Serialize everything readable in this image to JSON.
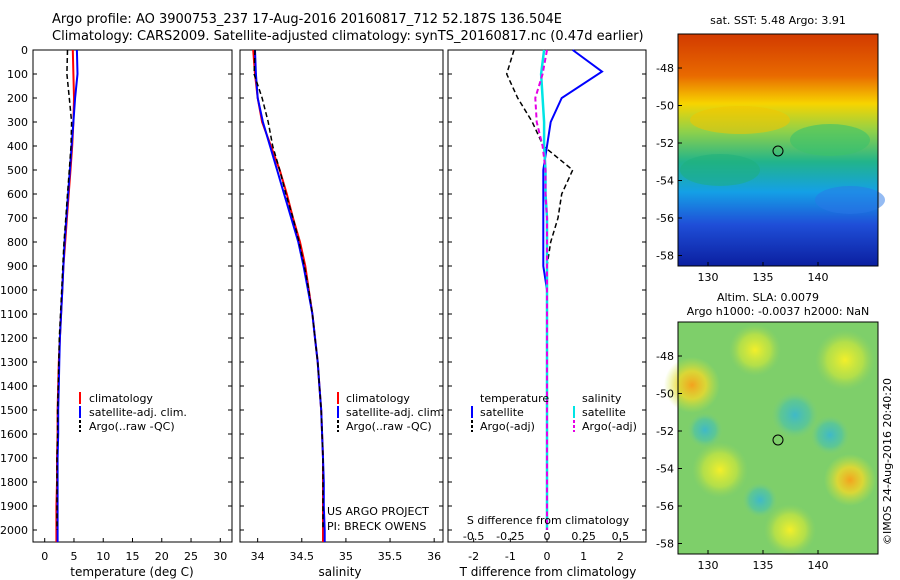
{
  "header": {
    "line1": "Argo profile: AO 3900753_237 17-Aug-2016 20160817_712 52.187S 136.504E",
    "line2": "Climatology: CARS2009. Satellite-adjusted climatology: synTS_20160817.nc (0.47d earlier)"
  },
  "colors": {
    "climatology": "#ff0000",
    "satellite": "#0000ff",
    "argo": "#000000",
    "salinity_sat": "#00e5e5",
    "salinity_argo": "#e600e6"
  },
  "depth_ticks": [
    0,
    100,
    200,
    300,
    400,
    500,
    600,
    700,
    800,
    900,
    1000,
    1100,
    1200,
    1300,
    1400,
    1500,
    1600,
    1700,
    1800,
    1900,
    2000
  ],
  "panels": {
    "temperature": {
      "xlabel": "temperature (deg C)",
      "xticks": [
        "0",
        "5",
        "10",
        "15",
        "20",
        "25",
        "30"
      ],
      "legend": [
        "climatology",
        "satellite-adj. clim.",
        "Argo(..raw -QC)"
      ]
    },
    "salinity": {
      "xlabel": "salinity",
      "xticks": [
        "34",
        "34.5",
        "35",
        "35.5",
        "36"
      ],
      "legend": [
        "climatology",
        "satellite-adj. clim.",
        "Argo(..raw -QC)"
      ],
      "credit1": "US ARGO PROJECT",
      "credit2": "PI: BRECK OWENS"
    },
    "difference": {
      "xlabel": "T difference from climatology",
      "top_title": "S difference from climatology",
      "xticks": [
        "-2",
        "-1",
        "0",
        "1",
        "2"
      ],
      "sticks": [
        "-0.5",
        "-0.25",
        "0",
        "0.25",
        "0.5"
      ],
      "legend_t_title": "temperature",
      "legend_s_title": "salinity",
      "legend_t": [
        "satellite",
        "Argo(-adj)"
      ],
      "legend_s": [
        "satellite",
        "Argo(-adj)"
      ]
    }
  },
  "maps": {
    "sst": {
      "title": "sat. SST: 5.48 Argo: 3.91",
      "lat_ticks": [
        "-48",
        "-50",
        "-52",
        "-54",
        "-56",
        "-58"
      ],
      "lon_ticks": [
        "130",
        "135",
        "140"
      ]
    },
    "sla": {
      "title1": "Altim. SLA: 0.0079",
      "title2": "Argo h1000: -0.0037 h2000: NaN",
      "lat_ticks": [
        "-48",
        "-50",
        "-52",
        "-54",
        "-56",
        "-58"
      ],
      "lon_ticks": [
        "130",
        "135",
        "140"
      ]
    }
  },
  "watermark": "©IMOS 24-Aug-2016 20:40:20",
  "chart_data": [
    {
      "type": "line",
      "xlabel": "temperature (deg C)",
      "xlim": [
        -2,
        32
      ],
      "ylim": [
        2050,
        0
      ],
      "series": [
        {
          "name": "climatology",
          "x": [
            4.8,
            4.9,
            5.0,
            4.9,
            4.7,
            4.4,
            4.1,
            3.8,
            3.5,
            3.2,
            3.0,
            2.8,
            2.6,
            2.4,
            2.3,
            2.2,
            2.2,
            2.1,
            2.1,
            2.0,
            2.0,
            2.0
          ],
          "y": [
            0,
            100,
            200,
            300,
            400,
            500,
            600,
            700,
            800,
            900,
            1000,
            1100,
            1200,
            1300,
            1400,
            1500,
            1600,
            1700,
            1800,
            1900,
            2000,
            2050
          ]
        },
        {
          "name": "satellite-adj. clim.",
          "x": [
            5.5,
            5.6,
            5.2,
            4.9,
            4.6,
            4.3,
            4.0,
            3.7,
            3.4,
            3.2,
            3.0,
            2.8,
            2.6,
            2.5,
            2.4,
            2.3,
            2.3,
            2.2,
            2.2,
            2.2,
            2.2,
            2.2
          ],
          "y": [
            0,
            100,
            200,
            300,
            400,
            500,
            600,
            700,
            800,
            900,
            1000,
            1100,
            1200,
            1300,
            1400,
            1500,
            1600,
            1700,
            1800,
            1900,
            2000,
            2050
          ]
        },
        {
          "name": "Argo(..raw -QC)",
          "x": [
            3.9,
            3.8,
            4.2,
            4.6,
            4.5,
            4.2,
            3.9,
            3.6,
            3.3,
            3.1,
            2.9,
            2.7,
            2.5,
            2.4,
            2.3,
            2.2,
            2.2,
            2.1,
            2.1,
            2.1,
            2.1
          ],
          "y": [
            0,
            100,
            200,
            300,
            400,
            500,
            600,
            700,
            800,
            900,
            1000,
            1100,
            1200,
            1300,
            1400,
            1500,
            1600,
            1700,
            1800,
            1900,
            2000
          ]
        }
      ]
    },
    {
      "type": "line",
      "xlabel": "salinity",
      "xlim": [
        33.8,
        36.1
      ],
      "ylim": [
        2050,
        0
      ],
      "series": [
        {
          "name": "climatology",
          "x": [
            33.95,
            33.97,
            34.0,
            34.05,
            34.15,
            34.25,
            34.33,
            34.4,
            34.48,
            34.54,
            34.58,
            34.62,
            34.65,
            34.68,
            34.7,
            34.72,
            34.73,
            34.74,
            34.74,
            34.74,
            34.74,
            34.74
          ],
          "y": [
            0,
            100,
            200,
            300,
            400,
            500,
            600,
            700,
            800,
            900,
            1000,
            1100,
            1200,
            1300,
            1400,
            1500,
            1600,
            1700,
            1800,
            1900,
            2000,
            2050
          ]
        },
        {
          "name": "satellite-adj. clim.",
          "x": [
            33.97,
            33.98,
            34.0,
            34.06,
            34.14,
            34.22,
            34.3,
            34.38,
            34.46,
            34.52,
            34.57,
            34.62,
            34.65,
            34.68,
            34.7,
            34.72,
            34.73,
            34.74,
            34.75,
            34.75,
            34.76,
            34.76
          ],
          "y": [
            0,
            100,
            200,
            300,
            400,
            500,
            600,
            700,
            800,
            900,
            1000,
            1100,
            1200,
            1300,
            1400,
            1500,
            1600,
            1700,
            1800,
            1900,
            2000,
            2050
          ]
        },
        {
          "name": "Argo(..raw -QC)",
          "x": [
            33.97,
            33.96,
            34.05,
            34.12,
            34.17,
            34.25,
            34.32,
            34.4,
            34.47,
            34.53,
            34.58,
            34.62,
            34.65,
            34.68,
            34.7,
            34.72,
            34.73,
            34.74,
            34.74,
            34.74,
            34.74
          ],
          "y": [
            0,
            100,
            200,
            300,
            400,
            500,
            600,
            700,
            800,
            900,
            1000,
            1100,
            1200,
            1300,
            1400,
            1500,
            1600,
            1700,
            1800,
            1900,
            2000
          ]
        }
      ]
    },
    {
      "type": "line",
      "xlabel": "T difference from climatology",
      "xlim": [
        -2.7,
        2.7
      ],
      "ylim": [
        2050,
        0
      ],
      "series": [
        {
          "name": "temperature satellite",
          "x": [
            0.7,
            1.5,
            0.4,
            0.1,
            0.0,
            -0.1,
            -0.1,
            -0.1,
            -0.1,
            -0.1,
            0.0,
            0.0,
            0.0,
            0.0,
            0.0,
            0.0,
            0.0,
            0.0,
            0.0,
            0.0,
            0.0
          ],
          "y": [
            0,
            90,
            200,
            300,
            400,
            500,
            600,
            700,
            800,
            900,
            1000,
            1100,
            1200,
            1300,
            1400,
            1500,
            1600,
            1700,
            1800,
            1900,
            2000
          ]
        },
        {
          "name": "temperature Argo(-adj)",
          "x": [
            -0.9,
            -1.1,
            -0.8,
            -0.4,
            -0.1,
            0.7,
            0.4,
            0.3,
            0.1,
            0.0,
            0.0,
            0.0,
            0.0,
            0.0,
            0.0,
            0.0,
            0.0,
            0.0,
            0.0,
            0.0,
            0.0
          ],
          "y": [
            0,
            100,
            200,
            300,
            400,
            500,
            600,
            700,
            800,
            900,
            1000,
            1100,
            1200,
            1300,
            1400,
            1500,
            1600,
            1700,
            1800,
            1900,
            2000
          ]
        }
      ]
    },
    {
      "type": "line",
      "xlabel": "S difference from climatology",
      "xlim": [
        -0.675,
        0.675
      ],
      "ylim": [
        2050,
        0
      ],
      "series": [
        {
          "name": "salinity satellite",
          "x": [
            -0.02,
            -0.04,
            -0.03,
            -0.02,
            -0.02,
            -0.01,
            -0.01,
            0.0,
            0.0,
            0.0,
            0.0,
            0.0,
            0.0,
            0.0,
            0.0,
            0.0,
            0.0,
            0.0,
            0.0,
            0.0,
            0.0
          ],
          "y": [
            0,
            100,
            200,
            300,
            400,
            500,
            600,
            700,
            800,
            900,
            1000,
            1100,
            1200,
            1300,
            1400,
            1500,
            1600,
            1700,
            1800,
            1900,
            2000
          ]
        },
        {
          "name": "salinity Argo(-adj)",
          "x": [
            0.0,
            -0.03,
            -0.08,
            -0.07,
            -0.03,
            -0.01,
            -0.01,
            0.0,
            0.0,
            0.0,
            0.0,
            0.0,
            0.0,
            0.0,
            0.0,
            0.0,
            0.0,
            0.0,
            0.0,
            0.0,
            0.0
          ],
          "y": [
            0,
            100,
            200,
            300,
            400,
            500,
            600,
            700,
            800,
            900,
            1000,
            1100,
            1200,
            1300,
            1400,
            1500,
            1600,
            1700,
            1800,
            1900,
            2000
          ]
        }
      ]
    }
  ]
}
